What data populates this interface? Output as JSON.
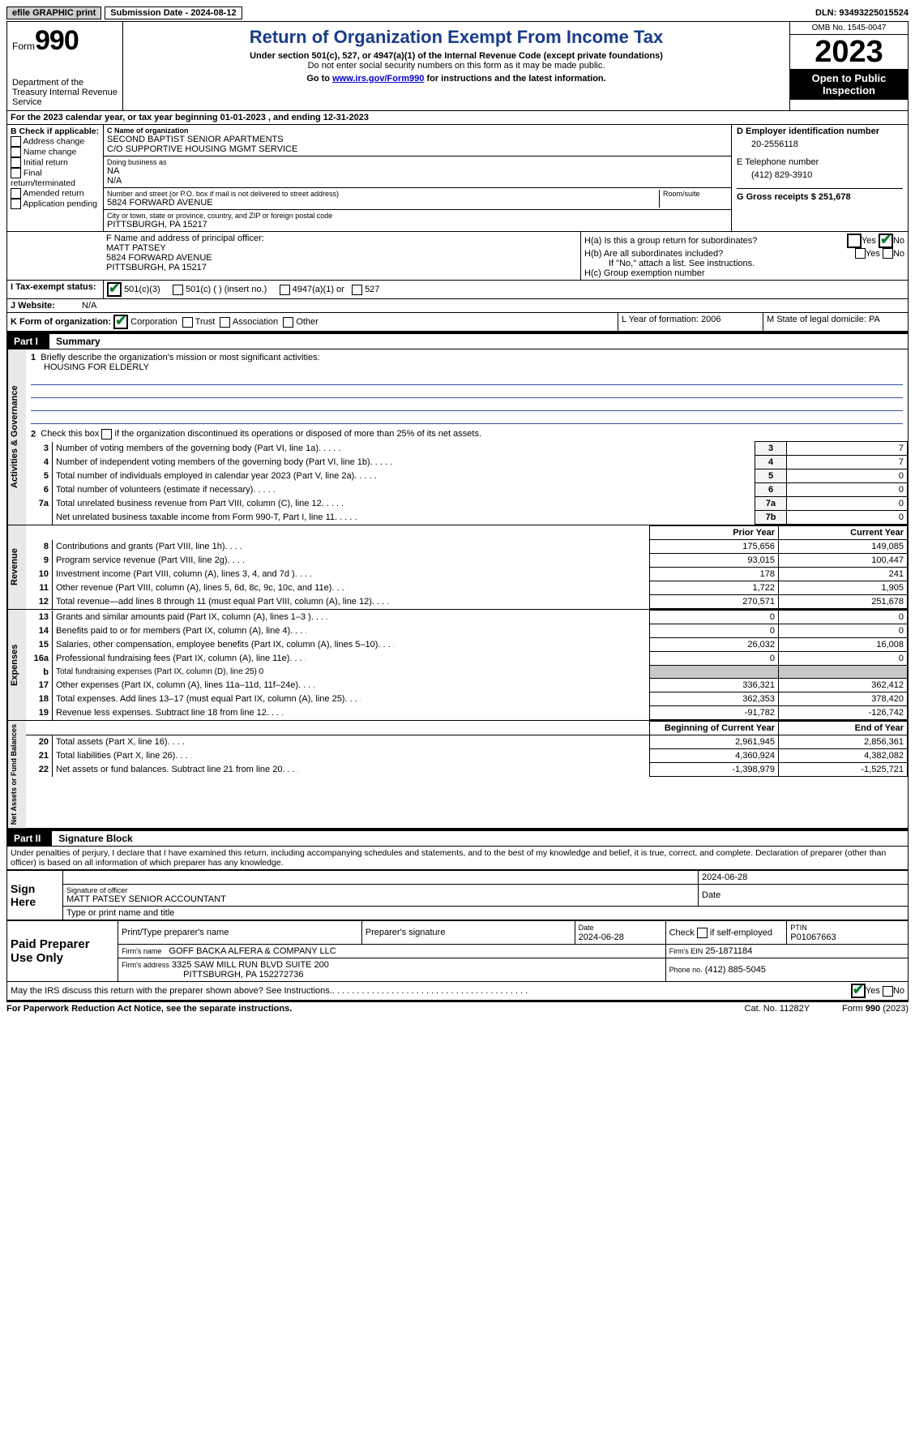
{
  "topbar": {
    "efile": "efile GRAPHIC print",
    "subdate_label": "Submission Date - 2024-08-12",
    "dln": "DLN: 93493225015524"
  },
  "header": {
    "form_label": "Form",
    "form_no": "990",
    "dept": "Department of the Treasury Internal Revenue Service",
    "title": "Return of Organization Exempt From Income Tax",
    "sub1": "Under section 501(c), 527, or 4947(a)(1) of the Internal Revenue Code (except private foundations)",
    "sub2": "Do not enter social security numbers on this form as it may be made public.",
    "go_prefix": "Go to ",
    "go_link": "www.irs.gov/Form990",
    "go_suffix": " for instructions and the latest information.",
    "omb": "OMB No. 1545-0047",
    "year": "2023",
    "pub": "Open to Public Inspection"
  },
  "lineA": "For the 2023 calendar year, or tax year beginning 01-01-2023   , and ending 12-31-2023",
  "colB": {
    "label": "B Check if applicable:",
    "items": [
      "Address change",
      "Name change",
      "Initial return",
      "Final return/terminated",
      "Amended return",
      "Application pending"
    ]
  },
  "colC": {
    "name_lbl": "C Name of organization",
    "name1": "SECOND BAPTIST SENIOR APARTMENTS",
    "name2": "C/O SUPPORTIVE HOUSING MGMT SERVICE",
    "dba_lbl": "Doing business as",
    "dba1": "NA",
    "dba2": "N/A",
    "addr_lbl": "Number and street (or P.O. box if mail is not delivered to street address)",
    "addr": "5824 FORWARD AVENUE",
    "room_lbl": "Room/suite",
    "city_lbl": "City or town, state or province, country, and ZIP or foreign postal code",
    "city": "PITTSBURGH, PA  15217"
  },
  "colDE": {
    "d_lbl": "D Employer identification number",
    "d_val": "20-2556118",
    "e_lbl": "E Telephone number",
    "e_val": "(412) 829-3910",
    "g_lbl": "G Gross receipts $ 251,678"
  },
  "rowF": {
    "f_lbl": "F  Name and address of principal officer:",
    "f1": "MATT PATSEY",
    "f2": "5824 FORWARD AVENUE",
    "f3": "PITTSBURGH, PA  15217",
    "ha": "H(a)  Is this a group return for subordinates?",
    "hb": "H(b)  Are all subordinates included?",
    "hb_note": "If \"No,\" attach a list. See instructions.",
    "hc": "H(c)  Group exemption number",
    "yes": "Yes",
    "no": "No"
  },
  "rowI": {
    "label": "I   Tax-exempt status:",
    "o1": "501(c)(3)",
    "o2": "501(c) (  ) (insert no.)",
    "o3": "4947(a)(1) or",
    "o4": "527"
  },
  "rowJ": {
    "label": "J   Website:",
    "val": "N/A"
  },
  "rowK": {
    "label": "K Form of organization:",
    "c1": "Corporation",
    "c2": "Trust",
    "c3": "Association",
    "c4": "Other",
    "l": "L Year of formation: 2006",
    "m": "M State of legal domicile: PA"
  },
  "part1": {
    "tag": "Part I",
    "title": "Summary"
  },
  "summary": {
    "q1": "Briefly describe the organization's mission or most significant activities:",
    "mission": "HOUSING FOR ELDERLY",
    "q2": "Check this box       if the organization discontinued its operations or disposed of more than 25% of its net assets.",
    "rows_gov": [
      {
        "n": "3",
        "t": "Number of voting members of the governing body (Part VI, line 1a)",
        "k": "3",
        "v": "7"
      },
      {
        "n": "4",
        "t": "Number of independent voting members of the governing body (Part VI, line 1b)",
        "k": "4",
        "v": "7"
      },
      {
        "n": "5",
        "t": "Total number of individuals employed in calendar year 2023 (Part V, line 2a)",
        "k": "5",
        "v": "0"
      },
      {
        "n": "6",
        "t": "Total number of volunteers (estimate if necessary)",
        "k": "6",
        "v": "0"
      },
      {
        "n": "7a",
        "t": "Total unrelated business revenue from Part VIII, column (C), line 12",
        "k": "7a",
        "v": "0"
      },
      {
        "n": "",
        "t": "Net unrelated business taxable income from Form 990-T, Part I, line 11",
        "k": "7b",
        "v": "0"
      }
    ],
    "hdr_prior": "Prior Year",
    "hdr_curr": "Current Year",
    "rows_rev": [
      {
        "n": "8",
        "t": "Contributions and grants (Part VIII, line 1h)",
        "p": "175,656",
        "c": "149,085"
      },
      {
        "n": "9",
        "t": "Program service revenue (Part VIII, line 2g)",
        "p": "93,015",
        "c": "100,447"
      },
      {
        "n": "10",
        "t": "Investment income (Part VIII, column (A), lines 3, 4, and 7d )",
        "p": "178",
        "c": "241"
      },
      {
        "n": "11",
        "t": "Other revenue (Part VIII, column (A), lines 5, 6d, 8c, 9c, 10c, and 11e)",
        "p": "1,722",
        "c": "1,905"
      },
      {
        "n": "12",
        "t": "Total revenue—add lines 8 through 11 (must equal Part VIII, column (A), line 12)",
        "p": "270,571",
        "c": "251,678"
      }
    ],
    "rows_exp": [
      {
        "n": "13",
        "t": "Grants and similar amounts paid (Part IX, column (A), lines 1–3 )",
        "p": "0",
        "c": "0"
      },
      {
        "n": "14",
        "t": "Benefits paid to or for members (Part IX, column (A), line 4)",
        "p": "0",
        "c": "0"
      },
      {
        "n": "15",
        "t": "Salaries, other compensation, employee benefits (Part IX, column (A), lines 5–10)",
        "p": "26,032",
        "c": "16,008"
      },
      {
        "n": "16a",
        "t": "Professional fundraising fees (Part IX, column (A), line 11e)",
        "p": "0",
        "c": "0"
      }
    ],
    "row16b": {
      "n": "b",
      "t": "Total fundraising expenses (Part IX, column (D), line 25) 0"
    },
    "rows_exp2": [
      {
        "n": "17",
        "t": "Other expenses (Part IX, column (A), lines 11a–11d, 11f–24e)",
        "p": "336,321",
        "c": "362,412"
      },
      {
        "n": "18",
        "t": "Total expenses. Add lines 13–17 (must equal Part IX, column (A), line 25)",
        "p": "362,353",
        "c": "378,420"
      },
      {
        "n": "19",
        "t": "Revenue less expenses. Subtract line 18 from line 12",
        "p": "-91,782",
        "c": "-126,742"
      }
    ],
    "hdr_beg": "Beginning of Current Year",
    "hdr_end": "End of Year",
    "rows_na": [
      {
        "n": "20",
        "t": "Total assets (Part X, line 16)",
        "p": "2,961,945",
        "c": "2,856,361"
      },
      {
        "n": "21",
        "t": "Total liabilities (Part X, line 26)",
        "p": "4,360,924",
        "c": "4,382,082"
      },
      {
        "n": "22",
        "t": "Net assets or fund balances. Subtract line 21 from line 20",
        "p": "-1,398,979",
        "c": "-1,525,721"
      }
    ],
    "tabs": {
      "gov": "Activities & Governance",
      "rev": "Revenue",
      "exp": "Expenses",
      "na": "Net Assets or Fund Balances"
    }
  },
  "part2": {
    "tag": "Part II",
    "title": "Signature Block"
  },
  "sig": {
    "perjury": "Under penalties of perjury, I declare that I have examined this return, including accompanying schedules and statements, and to the best of my knowledge and belief, it is true, correct, and complete. Declaration of preparer (other than officer) is based on all information of which preparer has any knowledge.",
    "sign_here": "Sign Here",
    "sig_officer": "Signature of officer",
    "officer": "MATT PATSEY  SENIOR ACCOUNTANT",
    "type_name": "Type or print name and title",
    "date_lbl": "Date",
    "date1": "2024-06-28",
    "paid": "Paid Preparer Use Only",
    "prep_name_lbl": "Print/Type preparer's name",
    "prep_sig_lbl": "Preparer's signature",
    "date2": "2024-06-28",
    "check_self": "Check         if self-employed",
    "ptin_lbl": "PTIN",
    "ptin": "P01067663",
    "firm_name_lbl": "Firm's name",
    "firm_name": "GOFF BACKA ALFERA & COMPANY LLC",
    "firm_ein_lbl": "Firm's EIN",
    "firm_ein": "25-1871184",
    "firm_addr_lbl": "Firm's address",
    "firm_addr1": "3325 SAW MILL RUN BLVD SUITE 200",
    "firm_addr2": "PITTSBURGH, PA  152272736",
    "phone_lbl": "Phone no.",
    "phone": "(412) 885-5045",
    "discuss": "May the IRS discuss this return with the preparer shown above? See Instructions."
  },
  "footer": {
    "pra": "For Paperwork Reduction Act Notice, see the separate instructions.",
    "cat": "Cat. No. 11282Y",
    "form": "Form 990 (2023)"
  },
  "style": {
    "title_color": "#1a3c8a",
    "line_color": "#304fa0",
    "check_color": "#0a7a2a"
  }
}
